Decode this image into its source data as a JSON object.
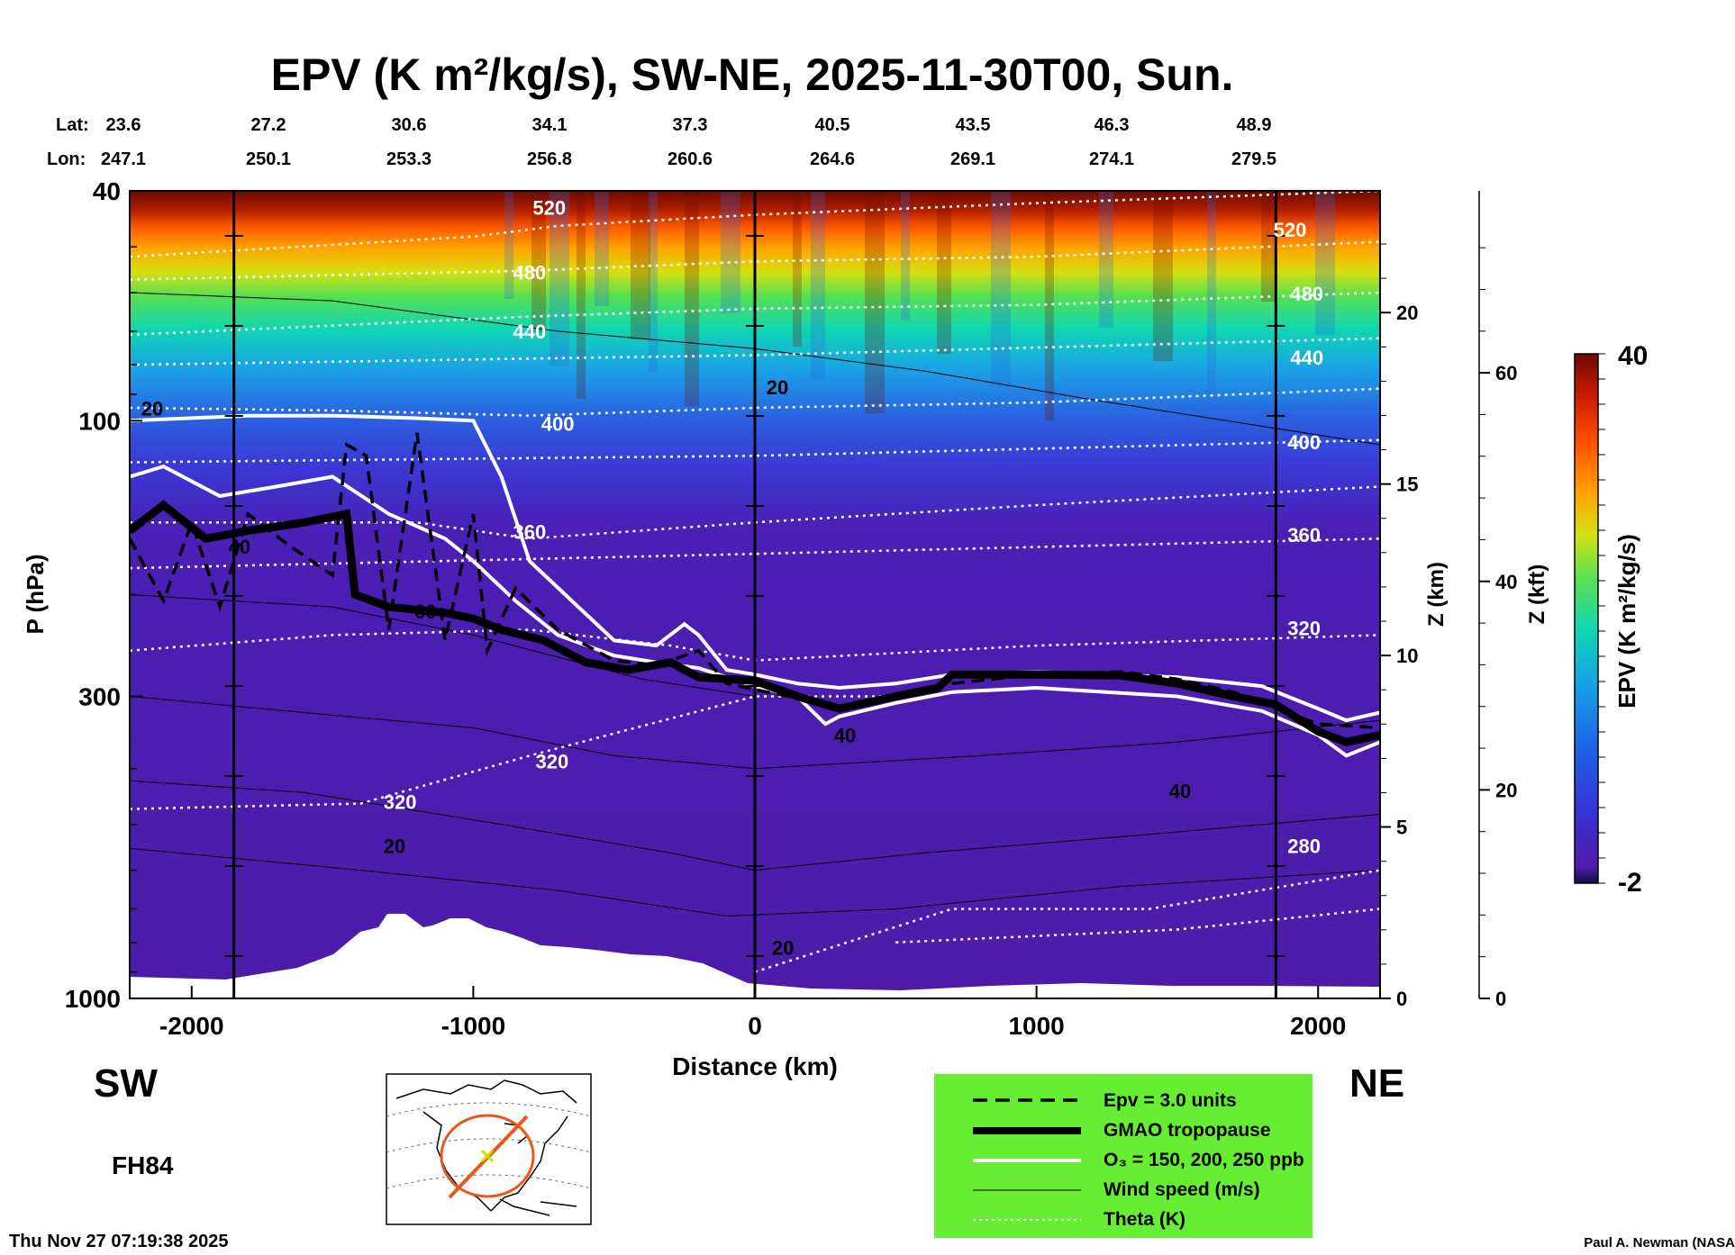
{
  "chart_data": {
    "type": "contour-cross-section",
    "title": "EPV (K m²/kg/s), SW-NE, 2025-11-30T00, Sun.",
    "xlabel": "Distance (km)",
    "ylabel": "P (hPa)",
    "z_km_label": "Z (km)",
    "z_kft_label": "Z (kft)",
    "xlim": [
      -2220,
      2220
    ],
    "x_ticks": [
      "-2000",
      "-1000",
      "0",
      "1000",
      "2000"
    ],
    "x_tick_values": [
      -2000,
      -1000,
      0,
      1000,
      2000
    ],
    "p_ticks": [
      "40",
      "100",
      "300",
      "1000"
    ],
    "p_tick_values": [
      40,
      100,
      300,
      1000
    ],
    "ylim_hpa": [
      1000,
      40
    ],
    "z_km_ticks": [
      "0",
      "5",
      "10",
      "15",
      "20"
    ],
    "z_km_values": [
      0,
      5,
      10,
      15,
      20
    ],
    "z_kft_ticks": [
      "0",
      "20",
      "40",
      "60"
    ],
    "z_kft_values": [
      0,
      20,
      40,
      60
    ],
    "lat_label": "Lat:",
    "lon_label": "Lon:",
    "lat_values": [
      "23.6",
      "27.2",
      "30.6",
      "34.1",
      "37.3",
      "40.5",
      "43.5",
      "46.3",
      "48.9"
    ],
    "lon_values": [
      "247.1",
      "250.1",
      "253.3",
      "256.8",
      "260.6",
      "264.6",
      "269.1",
      "274.1",
      "279.5"
    ],
    "reference_verticals_km": [
      -1850,
      0,
      1850
    ],
    "colorbar": {
      "label": "EPV (K m²/kg/s)",
      "min": -2,
      "max": 40,
      "min_label": "-2",
      "max_label": "40"
    },
    "tropopause_gmao_hpa": [
      [
        -2220,
        155
      ],
      [
        -2100,
        140
      ],
      [
        -1950,
        160
      ],
      [
        -1800,
        155
      ],
      [
        -1600,
        150
      ],
      [
        -1450,
        145
      ],
      [
        -1420,
        200
      ],
      [
        -1300,
        210
      ],
      [
        -1100,
        215
      ],
      [
        -1000,
        220
      ],
      [
        -900,
        230
      ],
      [
        -750,
        240
      ],
      [
        -600,
        262
      ],
      [
        -450,
        270
      ],
      [
        -300,
        262
      ],
      [
        -200,
        278
      ],
      [
        -100,
        280
      ],
      [
        0,
        282
      ],
      [
        150,
        300
      ],
      [
        300,
        315
      ],
      [
        500,
        300
      ],
      [
        650,
        290
      ],
      [
        700,
        275
      ],
      [
        1000,
        275
      ],
      [
        1300,
        276
      ],
      [
        1500,
        285
      ],
      [
        1700,
        300
      ],
      [
        1850,
        310
      ],
      [
        2000,
        345
      ],
      [
        2100,
        360
      ],
      [
        2220,
        350
      ]
    ],
    "ozone_150_ppb_hpa": [
      [
        -2220,
        100
      ],
      [
        -1800,
        98
      ],
      [
        -1500,
        98
      ],
      [
        -1200,
        99
      ],
      [
        -1000,
        100
      ],
      [
        -900,
        125
      ],
      [
        -800,
        175
      ],
      [
        -650,
        205
      ],
      [
        -500,
        240
      ],
      [
        -350,
        245
      ],
      [
        -250,
        225
      ],
      [
        -200,
        235
      ],
      [
        -100,
        270
      ],
      [
        0,
        275
      ],
      [
        150,
        285
      ],
      [
        300,
        290
      ],
      [
        500,
        285
      ],
      [
        700,
        275
      ],
      [
        1000,
        272
      ],
      [
        1500,
        278
      ],
      [
        1800,
        288
      ],
      [
        2000,
        315
      ],
      [
        2100,
        330
      ],
      [
        2220,
        320
      ]
    ],
    "ozone_250_ppb_hpa": [
      [
        -2220,
        125
      ],
      [
        -2100,
        120
      ],
      [
        -1900,
        135
      ],
      [
        -1700,
        130
      ],
      [
        -1500,
        125
      ],
      [
        -1300,
        145
      ],
      [
        -1100,
        160
      ],
      [
        -1000,
        175
      ],
      [
        -850,
        205
      ],
      [
        -700,
        235
      ],
      [
        -500,
        255
      ],
      [
        -350,
        262
      ],
      [
        -200,
        268
      ],
      [
        0,
        288
      ],
      [
        150,
        300
      ],
      [
        250,
        335
      ],
      [
        300,
        325
      ],
      [
        500,
        308
      ],
      [
        700,
        295
      ],
      [
        1000,
        290
      ],
      [
        1500,
        300
      ],
      [
        1800,
        318
      ],
      [
        2000,
        350
      ],
      [
        2100,
        380
      ],
      [
        2220,
        360
      ]
    ],
    "epv3_hpa": [
      [
        -2220,
        160
      ],
      [
        -2100,
        205
      ],
      [
        -2000,
        150
      ],
      [
        -1900,
        210
      ],
      [
        -1800,
        145
      ],
      [
        -1650,
        165
      ],
      [
        -1500,
        185
      ],
      [
        -1450,
        110
      ],
      [
        -1380,
        115
      ],
      [
        -1300,
        230
      ],
      [
        -1200,
        105
      ],
      [
        -1100,
        240
      ],
      [
        -1000,
        145
      ],
      [
        -950,
        250
      ],
      [
        -850,
        195
      ],
      [
        -700,
        230
      ],
      [
        -500,
        260
      ],
      [
        -350,
        265
      ],
      [
        -200,
        250
      ],
      [
        -100,
        285
      ],
      [
        0,
        292
      ],
      [
        150,
        302
      ],
      [
        300,
        312
      ],
      [
        500,
        300
      ],
      [
        700,
        285
      ],
      [
        1000,
        275
      ],
      [
        1300,
        272
      ],
      [
        1500,
        280
      ],
      [
        1700,
        295
      ],
      [
        2000,
        335
      ],
      [
        2220,
        340
      ]
    ],
    "theta_isentropes_K": [
      {
        "label": "520",
        "points": [
          [
            -2220,
            52
          ],
          [
            -1000,
            48
          ],
          [
            -700,
            46
          ],
          [
            0,
            44
          ],
          [
            1000,
            42
          ],
          [
            2220,
            40
          ]
        ]
      },
      {
        "label": "480",
        "points": [
          [
            -2220,
            57
          ],
          [
            -800,
            55
          ],
          [
            0,
            53
          ],
          [
            1000,
            52
          ],
          [
            2220,
            49
          ]
        ]
      },
      {
        "label": "440",
        "points": [
          [
            -2220,
            71
          ],
          [
            -800,
            66
          ],
          [
            0,
            64
          ],
          [
            1000,
            63
          ],
          [
            2220,
            60
          ]
        ]
      },
      {
        "label": "400",
        "points": [
          [
            -2220,
            95
          ],
          [
            -1500,
            96
          ],
          [
            -800,
            98
          ],
          [
            0,
            95
          ],
          [
            1000,
            93
          ],
          [
            2220,
            88
          ]
        ]
      },
      {
        "label": "360",
        "points": [
          [
            -2220,
            150
          ],
          [
            -1200,
            150
          ],
          [
            -800,
            160
          ],
          [
            0,
            150
          ],
          [
            1000,
            140
          ],
          [
            2220,
            130
          ]
        ]
      },
      {
        "label": "320",
        "points": [
          [
            -2220,
            250
          ],
          [
            -1500,
            235
          ],
          [
            -800,
            230
          ],
          [
            -300,
            245
          ],
          [
            0,
            260
          ],
          [
            1000,
            245
          ],
          [
            2220,
            235
          ]
        ]
      },
      {
        "label": "320",
        "points": [
          [
            -2220,
            470
          ],
          [
            -1400,
            460
          ],
          [
            -800,
            380
          ],
          [
            0,
            300
          ],
          [
            500,
            300
          ]
        ]
      },
      {
        "label": "280",
        "points": [
          [
            0,
            900
          ],
          [
            700,
            700
          ],
          [
            1400,
            700
          ],
          [
            2220,
            600
          ]
        ]
      }
    ],
    "isentrope_labels": [
      "520",
      "480",
      "440",
      "400",
      "360",
      "320",
      "320",
      "520",
      "480",
      "440",
      "400",
      "360",
      "320",
      "280"
    ],
    "windspeed_labels_ms": [
      "20",
      "40",
      "60",
      "40",
      "20",
      "20",
      "40",
      "20"
    ],
    "legend": [
      {
        "label": "Epv = 3.0 units",
        "style": "dashed"
      },
      {
        "label": "GMAO tropopause",
        "style": "thick"
      },
      {
        "label": "O₃ = 150, 200, 250 ppb",
        "style": "white"
      },
      {
        "label": "Wind speed (m/s)",
        "style": "thin"
      },
      {
        "label": "Theta (K)",
        "style": "dotted"
      }
    ],
    "sw_label": "SW",
    "ne_label": "NE",
    "forecast_hour": "FH84",
    "timestamp": "Thu Nov 27 07:19:38 2025",
    "author": "Paul A. Newman (NASA"
  },
  "colors": {
    "legend_bg": "#66ee33",
    "terrain": "#ffffff",
    "low_epv": "#4d1ba8"
  }
}
